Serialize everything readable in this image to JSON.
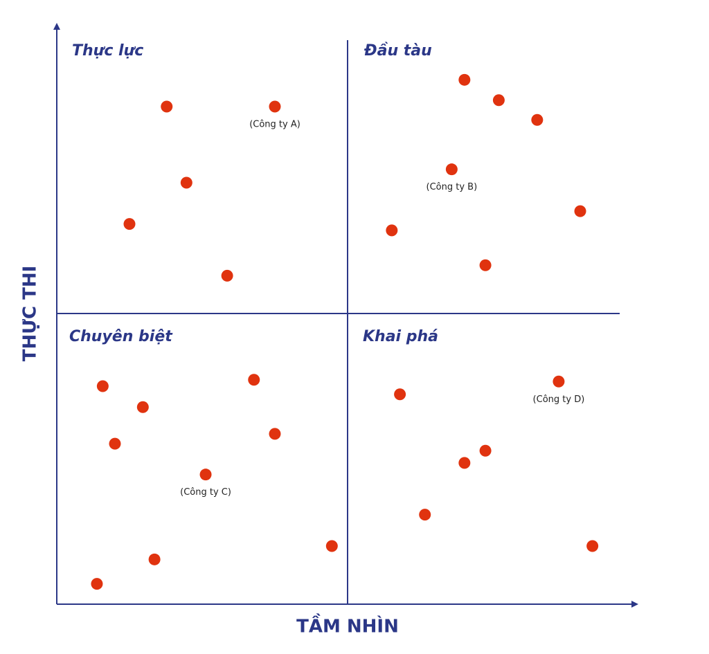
{
  "chart_data": {
    "type": "scatter",
    "x_label": "TẦM NHÌN",
    "y_label": "THỰC THI",
    "xlim": [
      0,
      100
    ],
    "ylim": [
      0,
      100
    ],
    "dividers": {
      "x": 50,
      "y": 50
    },
    "quadrant_labels": [
      "Thực lực",
      "Đầu tàu",
      "Chuyên biệt",
      "Khai phá"
    ],
    "axis_color": "#2b3787",
    "series": [
      {
        "color": "#e0330f",
        "x": [
          18.9,
          37.5,
          22.3,
          12.5,
          29.3,
          70.1,
          76.0,
          82.6,
          67.9,
          90.0,
          57.6,
          73.7,
          7.9,
          33.9,
          14.8,
          10.0,
          37.5,
          25.6,
          47.3,
          16.8,
          6.9,
          59.0,
          86.3,
          73.7,
          70.1,
          63.3,
          92.1
        ],
        "values": [
          85.6,
          85.6,
          72.5,
          65.4,
          56.5,
          90.2,
          86.7,
          83.3,
          74.8,
          67.6,
          64.3,
          58.3,
          37.5,
          38.6,
          33.9,
          27.6,
          29.3,
          22.3,
          10.0,
          7.7,
          3.5,
          36.1,
          38.3,
          26.4,
          24.3,
          15.4,
          10.0
        ],
        "labels": [
          null,
          "(Công ty A)",
          null,
          null,
          null,
          null,
          null,
          null,
          "(Công ty B)",
          null,
          null,
          null,
          null,
          null,
          null,
          null,
          null,
          "(Công ty C)",
          null,
          null,
          null,
          null,
          "(Công ty D)",
          null,
          null,
          null,
          null
        ]
      }
    ]
  }
}
